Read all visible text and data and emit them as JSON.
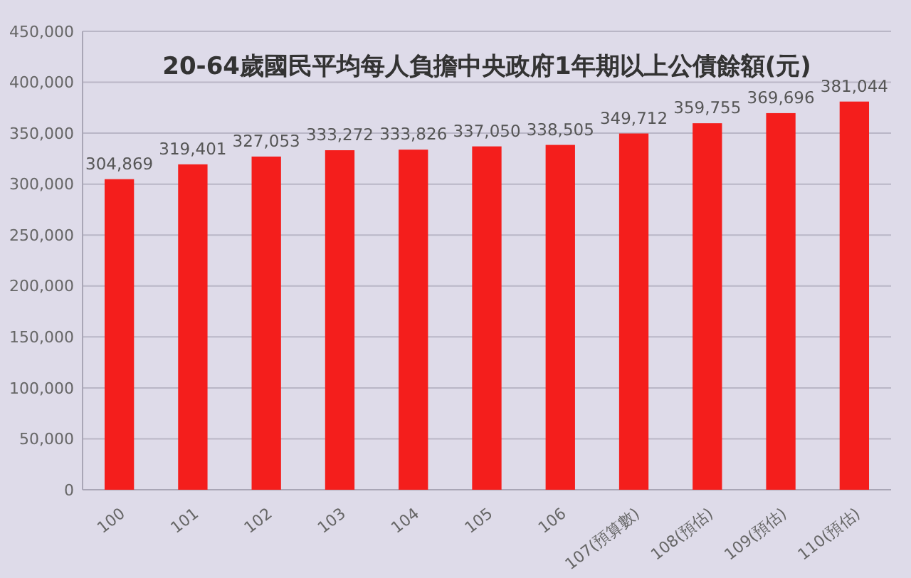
{
  "chart_data": {
    "type": "bar",
    "title": "20-64歲國民平均每人負擔中央政府1年期以上公債餘額(元)",
    "categories": [
      "100",
      "101",
      "102",
      "103",
      "104",
      "105",
      "106",
      "107(預算數)",
      "108(預估)",
      "109(預估)",
      "110(預估)"
    ],
    "values": [
      304869,
      319401,
      327053,
      333272,
      333826,
      337050,
      338505,
      349712,
      359755,
      369696,
      381044
    ],
    "value_labels": [
      "304,869",
      "319,401",
      "327,053",
      "333,272",
      "333,826",
      "337,050",
      "338,505",
      "349,712",
      "359,755",
      "369,696",
      "381,044"
    ],
    "color": "#f41e1c",
    "ylim": [
      0,
      450000
    ],
    "yticks": [
      {
        "value": 0,
        "label": "0"
      },
      {
        "value": 50000,
        "label": "50,000"
      },
      {
        "value": 100000,
        "label": "100,000"
      },
      {
        "value": 150000,
        "label": "150,000"
      },
      {
        "value": 200000,
        "label": "200,000"
      },
      {
        "value": 250000,
        "label": "250,000"
      },
      {
        "value": 300000,
        "label": "300,000"
      },
      {
        "value": 350000,
        "label": "350,000"
      },
      {
        "value": 400000,
        "label": "400,000"
      },
      {
        "value": 450000,
        "label": "450,000"
      }
    ],
    "grid": "y"
  }
}
